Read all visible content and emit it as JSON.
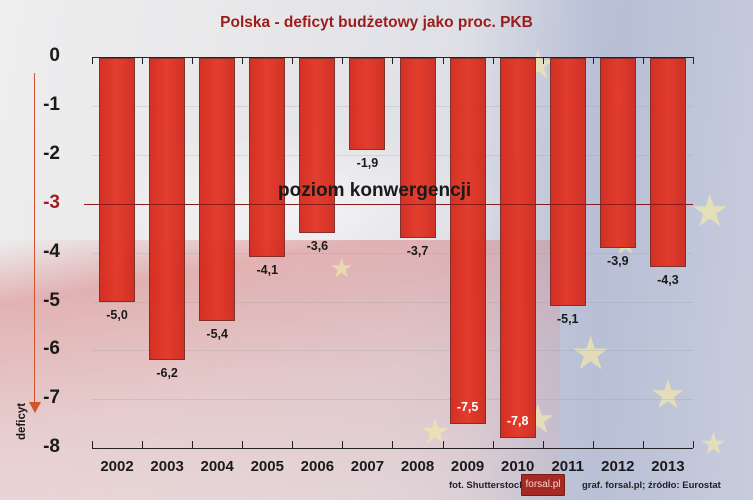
{
  "title": "Polska - deficyt budżetowy jako proc. PKB",
  "y_axis_label": "deficyt",
  "convergence_label": "poziom konwergencji",
  "convergence_value": -3,
  "y_ticks": [
    "0",
    "-1",
    "-2",
    "-3",
    "-4",
    "-5",
    "-6",
    "-7",
    "-8"
  ],
  "credits": {
    "photo": "fot. Shutterstock",
    "logo": "forsal.pl",
    "source": "graf. forsal.pl;  źródło: Eurostat"
  },
  "colors": {
    "bar": "#e0321f",
    "title": "#9b1c1c",
    "convergence_line": "#8b1a1a",
    "arrow": "#d2532e"
  },
  "bars": [
    {
      "year": "2002",
      "label": "-5,0"
    },
    {
      "year": "2003",
      "label": "-6,2"
    },
    {
      "year": "2004",
      "label": "-5,4"
    },
    {
      "year": "2005",
      "label": "-4,1"
    },
    {
      "year": "2006",
      "label": "-3,6"
    },
    {
      "year": "2007",
      "label": "-1,9"
    },
    {
      "year": "2008",
      "label": "-3,7"
    },
    {
      "year": "2009",
      "label": "-7,5"
    },
    {
      "year": "2010",
      "label": "-7,8"
    },
    {
      "year": "2011",
      "label": "-5,1"
    },
    {
      "year": "2012",
      "label": "-3,9"
    },
    {
      "year": "2013",
      "label": "-4,3"
    }
  ],
  "chart_data": {
    "type": "bar",
    "title": "Polska - deficyt budżetowy jako proc. PKB",
    "xlabel": "",
    "ylabel": "deficyt",
    "categories": [
      "2002",
      "2003",
      "2004",
      "2005",
      "2006",
      "2007",
      "2008",
      "2009",
      "2010",
      "2011",
      "2012",
      "2013"
    ],
    "values": [
      -5.0,
      -6.2,
      -5.4,
      -4.1,
      -3.6,
      -1.9,
      -3.7,
      -7.5,
      -7.8,
      -5.1,
      -3.9,
      -4.3
    ],
    "ylim": [
      -8,
      0
    ],
    "yticks": [
      0,
      -1,
      -2,
      -3,
      -4,
      -5,
      -6,
      -7,
      -8
    ],
    "annotations": [
      {
        "type": "hline",
        "y": -3,
        "label": "poziom konwergencji"
      }
    ],
    "grid": false,
    "legend": null
  }
}
